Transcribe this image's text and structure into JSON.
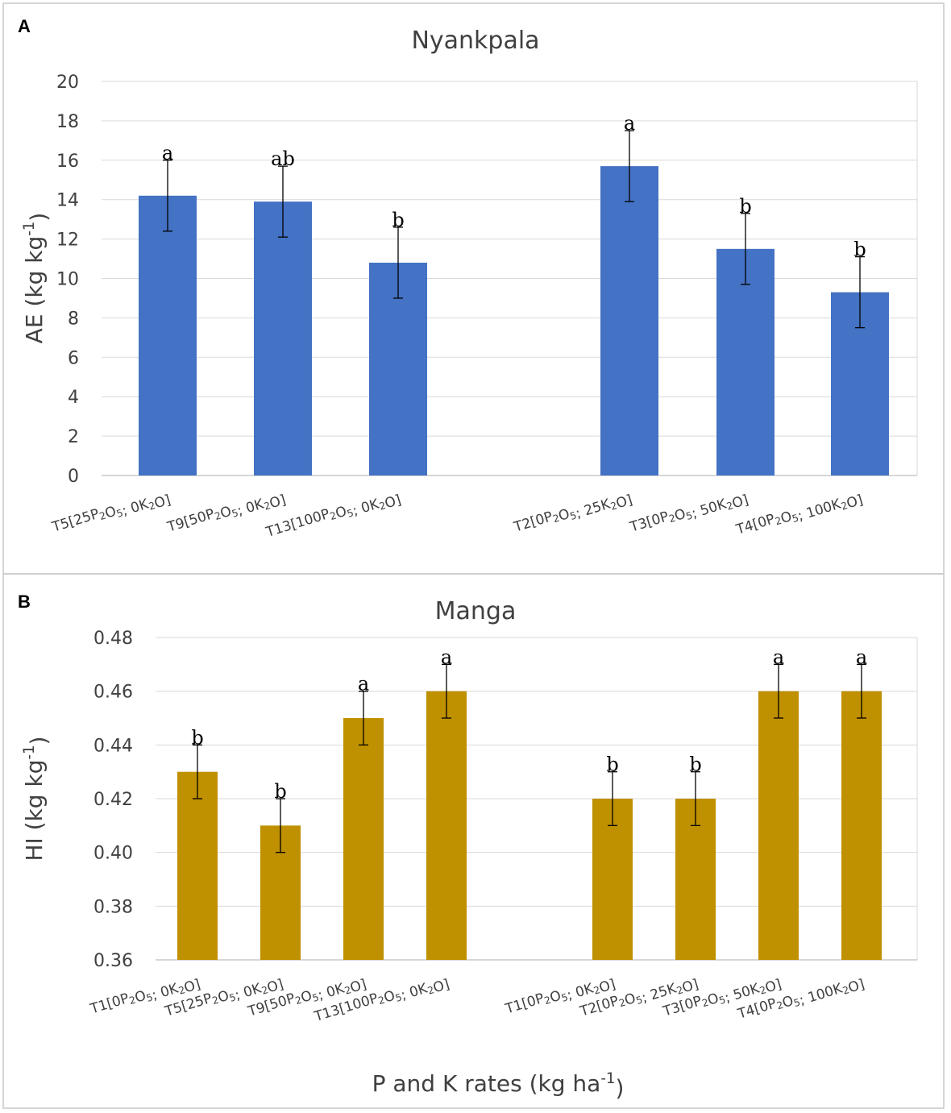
{
  "chart_data": [
    {
      "panel": "A",
      "type": "bar",
      "title": "Nyankpala",
      "ylabel": "AE (kg kg-1)",
      "xlabel": "",
      "ylim": [
        0,
        20
      ],
      "yticks": [
        0,
        2,
        4,
        6,
        8,
        10,
        12,
        14,
        16,
        18,
        20
      ],
      "grid": true,
      "color": "#4472C4",
      "categories": [
        "T5[25P2O5; 0K2O]",
        "T9[50P2O5; 0K2O]",
        "T13[100P2O5; 0K2O]",
        "T2[0P2O5; 25K2O]",
        "T3[0P2O5; 50K2O]",
        "T4[0P2O5; 100K2O]"
      ],
      "values": [
        14.2,
        13.9,
        10.8,
        15.7,
        11.5,
        9.3
      ],
      "errors": [
        1.8,
        1.8,
        1.8,
        1.8,
        1.8,
        1.8
      ],
      "letters": [
        "a",
        "ab",
        "b",
        "a",
        "b",
        "b"
      ],
      "groups": [
        [
          0,
          1,
          2
        ],
        [
          3,
          4,
          5
        ]
      ]
    },
    {
      "panel": "B",
      "type": "bar",
      "title": "Manga",
      "ylabel": "HI (kg kg-1)",
      "xlabel": "P and K rates (kg ha-1)",
      "ylim": [
        0.36,
        0.48
      ],
      "yticks": [
        0.36,
        0.38,
        0.4,
        0.42,
        0.44,
        0.46,
        0.48
      ],
      "grid": true,
      "color": "#BF9000",
      "categories": [
        "T1[0P2O5; 0K2O]",
        "T5[25P2O5; 0K2O]",
        "T9[50P2O5; 0K2O]",
        "T13[100P2O5; 0K2O]",
        "T1[0P2O5; 0K2O]",
        "T2[0P2O5; 25K2O]",
        "T3[0P2O5; 50K2O]",
        "T4[0P2O5; 100K2O]"
      ],
      "values": [
        0.43,
        0.41,
        0.45,
        0.46,
        0.42,
        0.42,
        0.46,
        0.46
      ],
      "errors": [
        0.01,
        0.01,
        0.01,
        0.01,
        0.01,
        0.01,
        0.01,
        0.01
      ],
      "letters": [
        "b",
        "b",
        "a",
        "a",
        "b",
        "b",
        "a",
        "a"
      ],
      "groups": [
        [
          0,
          1,
          2,
          3
        ],
        [
          4,
          5,
          6,
          7
        ]
      ]
    }
  ]
}
